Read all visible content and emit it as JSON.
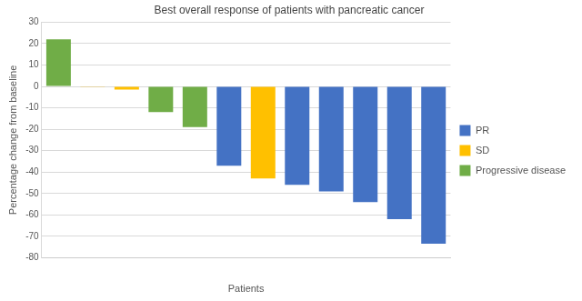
{
  "chart_data": {
    "type": "bar",
    "title": "Best overall response of patients with pancreatic cancer",
    "xlabel": "Patients",
    "ylabel": "Percentage change from baseline",
    "categories": [
      null,
      null,
      null,
      null,
      null,
      null,
      null,
      null,
      null,
      null,
      null,
      null
    ],
    "series": [
      {
        "name": "PR",
        "color": "#4472c4",
        "values": [
          null,
          null,
          null,
          null,
          null,
          -37,
          null,
          -46,
          -49,
          -54,
          -62,
          -73.5
        ]
      },
      {
        "name": "SD",
        "color": "#ffc000",
        "values": [
          null,
          -0.3,
          -1.5,
          null,
          null,
          null,
          -43,
          null,
          null,
          null,
          null,
          null
        ]
      },
      {
        "name": "Progressive disease",
        "color": "#70ad47",
        "values": [
          22,
          null,
          null,
          -12,
          -19,
          null,
          null,
          null,
          null,
          null,
          null,
          null
        ]
      }
    ],
    "ylim": [
      -80,
      30
    ],
    "yticks": [
      -80,
      -70,
      -60,
      -50,
      -40,
      -30,
      -20,
      -10,
      0,
      10,
      20,
      30
    ],
    "grid": true,
    "legend": "right"
  }
}
